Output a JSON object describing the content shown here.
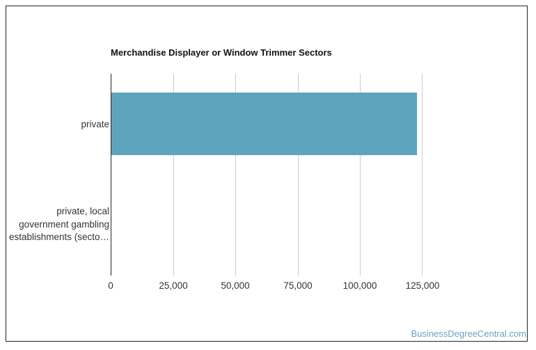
{
  "chart_data": {
    "type": "bar",
    "orientation": "horizontal",
    "title": "Merchandise Displayer or Window Trimmer Sectors",
    "categories": [
      "private",
      "private, local government gambling establishments (secto…"
    ],
    "category_label_lines": [
      [
        "private"
      ],
      [
        "private, local",
        "government gambling",
        "establishments (secto…"
      ]
    ],
    "values": [
      122800,
      300
    ],
    "xlabel": "",
    "ylabel": "",
    "xlim": [
      0,
      125000
    ],
    "x_ticks": [
      "0",
      "25,000",
      "50,000",
      "75,000",
      "100,000",
      "125,000"
    ],
    "grid": true,
    "legend": null,
    "bar_color": "#5ea4bf"
  },
  "watermark": "BusinessDegreeCentral.com"
}
